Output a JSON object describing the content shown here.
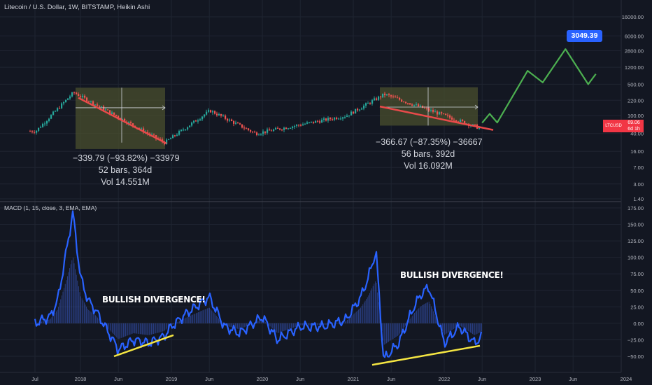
{
  "header": {
    "title": "Litecoin / U.S. Dollar, 1W, BITSTAMP, Heikin Ashi",
    "macd_title": "MACD (1, 15, close, 3, EMA, EMA)"
  },
  "colors": {
    "background": "#131722",
    "grid": "#1f2431",
    "up": "#26a69a",
    "down": "#ef5350",
    "macd_line": "#2962ff",
    "histogram": "#3a5bc8",
    "divergence_line": "#f5e642",
    "trend_line": "#e84a4a",
    "projection": "#4caf50",
    "range_box": "#4a4f2e"
  },
  "annotations": {
    "range1": {
      "line1": "−339.79 (−93.82%) −33979",
      "line2": "52 bars, 364d",
      "line3": "Vol 14.551M"
    },
    "range2": {
      "line1": "−366.67 (−87.35%) −36667",
      "line2": "56 bars, 392d",
      "line3": "Vol 16.092M"
    },
    "divergence1": "BULLISH DIVERGENCE!",
    "divergence2": "BULLISH DIVERGENCE!",
    "target": "3049.39",
    "last_symbol": "LTCUSD",
    "last_price": "69.06",
    "last_countdown": "6d 1h"
  },
  "chart_data": [
    {
      "type": "candlestick",
      "title": "Litecoin / U.S. Dollar, 1W, BITSTAMP, Heikin Ashi",
      "y_scale": "log",
      "y_ticks": [
        "16000.00",
        "6000.00",
        "2800.00",
        "1200.00",
        "500.00",
        "220.00",
        "100.00",
        "40.00",
        "16.00",
        "7.00",
        "3.00",
        "1.40"
      ],
      "x_ticks": [
        "Jul",
        "2018",
        "Jun",
        "2019",
        "Jun",
        "2020",
        "Jun",
        "2021",
        "Jun",
        "2022",
        "Jun",
        "2023",
        "Jun",
        "2024"
      ],
      "key_points": [
        {
          "x": "2017-07",
          "y": 45
        },
        {
          "x": "2017-12",
          "y": 330
        },
        {
          "x": "2018-12",
          "y": 25
        },
        {
          "x": "2019-06",
          "y": 130
        },
        {
          "x": "2019-12",
          "y": 40
        },
        {
          "x": "2020-12",
          "y": 100
        },
        {
          "x": "2021-05",
          "y": 300
        },
        {
          "x": "2022-06",
          "y": 50
        }
      ],
      "projection": [
        {
          "x": "2022-06",
          "y": 69
        },
        {
          "x": "2022-07",
          "y": 110
        },
        {
          "x": "2022-08",
          "y": 70
        },
        {
          "x": "2022-12",
          "y": 1000
        },
        {
          "x": "2023-02",
          "y": 550
        },
        {
          "x": "2023-05",
          "y": 3049.39
        },
        {
          "x": "2023-08",
          "y": 500
        },
        {
          "x": "2023-09",
          "y": 850
        }
      ],
      "target": 3049.39,
      "last_price": 69.06
    },
    {
      "type": "line",
      "title": "MACD (1, 15, close, 3, EMA, EMA)",
      "y_ticks": [
        "175.00",
        "150.00",
        "125.00",
        "100.00",
        "75.00",
        "50.00",
        "25.00",
        "0.00",
        "−25.00",
        "−50.00"
      ],
      "ylim": [
        -65,
        180
      ],
      "series": [
        {
          "values": [
            {
              "x": "2017-07",
              "y": 0
            },
            {
              "x": "2017-09",
              "y": 10
            },
            {
              "x": "2017-10",
              "y": 35
            },
            {
              "x": "2017-11",
              "y": 100
            },
            {
              "x": "2017-12",
              "y": 168
            },
            {
              "x": "2018-01",
              "y": 70
            },
            {
              "x": "2018-02",
              "y": 35
            },
            {
              "x": "2018-03",
              "y": 20
            },
            {
              "x": "2018-05",
              "y": -20
            },
            {
              "x": "2018-06",
              "y": -40
            },
            {
              "x": "2018-08",
              "y": -25
            },
            {
              "x": "2018-10",
              "y": -30
            },
            {
              "x": "2018-12",
              "y": -20
            },
            {
              "x": "2019-01",
              "y": -5
            },
            {
              "x": "2019-03",
              "y": 15
            },
            {
              "x": "2019-06",
              "y": 40
            },
            {
              "x": "2019-08",
              "y": -5
            },
            {
              "x": "2019-10",
              "y": -15
            },
            {
              "x": "2020-01",
              "y": 10
            },
            {
              "x": "2020-03",
              "y": -25
            },
            {
              "x": "2020-06",
              "y": -5
            },
            {
              "x": "2020-09",
              "y": -5
            },
            {
              "x": "2020-12",
              "y": 5
            },
            {
              "x": "2021-02",
              "y": 40
            },
            {
              "x": "2021-03",
              "y": 70
            },
            {
              "x": "2021-04",
              "y": 110
            },
            {
              "x": "2021-05",
              "y": -55
            },
            {
              "x": "2021-07",
              "y": -30
            },
            {
              "x": "2021-09",
              "y": 25
            },
            {
              "x": "2021-10",
              "y": 45
            },
            {
              "x": "2021-11",
              "y": 55
            },
            {
              "x": "2022-01",
              "y": -30
            },
            {
              "x": "2022-03",
              "y": -5
            },
            {
              "x": "2022-05",
              "y": -30
            },
            {
              "x": "2022-06",
              "y": -20
            }
          ]
        }
      ]
    }
  ]
}
